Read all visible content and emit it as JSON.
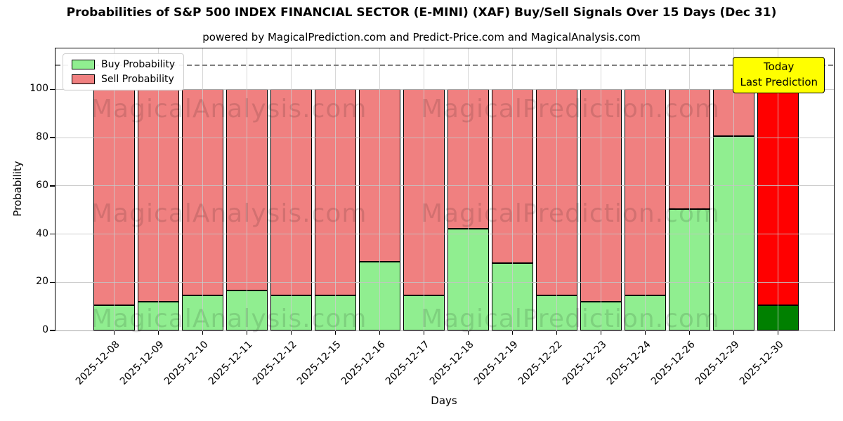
{
  "title": "Probabilities of S&P 500 INDEX FINANCIAL SECTOR (E-MINI) (XAF) Buy/Sell Signals Over 15 Days (Dec 31)",
  "subtitle": "powered by MagicalPrediction.com and Predict-Price.com and MagicalAnalysis.com",
  "legend": {
    "buy_label": "Buy Probability",
    "sell_label": "Sell Probability"
  },
  "annotation": {
    "line1": "Today",
    "line2": "Last Prediction"
  },
  "axes": {
    "xlabel": "Days",
    "ylabel": "Probability",
    "yticks": [
      0,
      20,
      40,
      60,
      80,
      100
    ],
    "ylim": [
      0,
      117
    ],
    "dashed_line_y": 110
  },
  "watermarks": {
    "left": "MagicalAnalysis.com",
    "right": "MagicalPrediction.com"
  },
  "colors": {
    "buy": "#90EE90",
    "sell": "#F08080",
    "today_buy": "#008000",
    "today_sell": "#FF0000",
    "annotation_bg": "#FFFF00",
    "grid": "#c3c3c3",
    "dashed_line": "#7f7f7f"
  },
  "chart_data": {
    "type": "bar",
    "stacked": true,
    "title": "Probabilities of S&P 500 INDEX FINANCIAL SECTOR (E-MINI) (XAF) Buy/Sell Signals Over 15 Days (Dec 31)",
    "xlabel": "Days",
    "ylabel": "Probability",
    "ylim": [
      0,
      117
    ],
    "grid": true,
    "legend_position": "upper left",
    "dashed_line_y": 110,
    "categories": [
      "2025-12-08",
      "2025-12-09",
      "2025-12-10",
      "2025-12-11",
      "2025-12-12",
      "2025-12-15",
      "2025-12-16",
      "2025-12-17",
      "2025-12-18",
      "2025-12-19",
      "2025-12-22",
      "2025-12-23",
      "2025-12-24",
      "2025-12-26",
      "2025-12-29",
      "2025-12-30"
    ],
    "series": [
      {
        "name": "Buy Probability",
        "color": "#90EE90",
        "values": [
          10.5,
          12,
          14.5,
          16.5,
          14.5,
          14.5,
          28.5,
          14.5,
          42.3,
          28,
          14.5,
          12,
          14.5,
          50.3,
          80.5,
          10.5
        ]
      },
      {
        "name": "Sell Probability",
        "color": "#F08080",
        "values": [
          89.5,
          88,
          85.5,
          83.5,
          85.5,
          85.5,
          71.5,
          85.5,
          57.7,
          72,
          85.5,
          88,
          85.5,
          49.7,
          19.5,
          89.5
        ]
      }
    ],
    "today_index": 15,
    "today_colors": {
      "buy": "#008000",
      "sell": "#FF0000"
    }
  }
}
